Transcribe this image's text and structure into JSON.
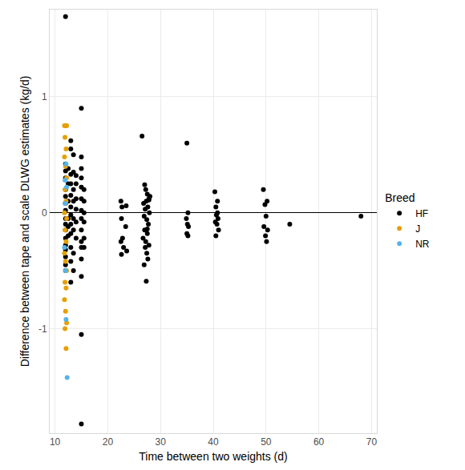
{
  "chart_data": {
    "type": "scatter",
    "x_label": "Time between two weights (d)",
    "y_label": "Difference between tape and scale DLWG estimates (kg/d)",
    "legend_title": "Breed",
    "legend": "right",
    "grid": true,
    "xlim": [
      9,
      71
    ],
    "xticks": [
      10,
      20,
      30,
      40,
      50,
      60,
      70
    ],
    "ylim": [
      -1.9,
      1.75
    ],
    "yticks": [
      -1,
      0,
      1
    ],
    "series": [
      {
        "name": "HF",
        "color": "#000000",
        "marker": "circle",
        "x": [
          12,
          12,
          12,
          12,
          12,
          12,
          12,
          12,
          12,
          12,
          12,
          12,
          12,
          12,
          12,
          12,
          12,
          12.5,
          12.5,
          12.5,
          12.5,
          12.5,
          12.5,
          13,
          13,
          13,
          13,
          13,
          13,
          13,
          13,
          13,
          13,
          13,
          13,
          13.5,
          13.5,
          13.5,
          13.5,
          13.5,
          13.5,
          13.5,
          13.5,
          14,
          14,
          14,
          14,
          14,
          14,
          15,
          15,
          15,
          15,
          15,
          15,
          15,
          15,
          15,
          15,
          15,
          15,
          15,
          15,
          15,
          15.5,
          15.5,
          15.5,
          15.5,
          15.5,
          15.5,
          22.5,
          22.7,
          22.6,
          22.8,
          22.5,
          22.6,
          23,
          23.5,
          23.4,
          23.6,
          26.5,
          27,
          27.2,
          27.5,
          27.8,
          27.3,
          26.8,
          27.6,
          27.1,
          27.9,
          26.9,
          27.4,
          27.7,
          27,
          27.5,
          26.7,
          27.2,
          27.8,
          27.1,
          27.4,
          27.6,
          26.9,
          27.3,
          27.5,
          28,
          27.8,
          35,
          35.2,
          34.9,
          35.1,
          35.3,
          35,
          35.2,
          40.3,
          40.5,
          40.8,
          40.6,
          40.9,
          40.4,
          40.7,
          41,
          40.5,
          40.8,
          49.5,
          50.2,
          49.8,
          50,
          49.6,
          50.3,
          49.9,
          50.1,
          54.5,
          68
        ],
        "values": [
          1.69,
          0.42,
          0.36,
          0.3,
          0.2,
          0.14,
          0.08,
          0.02,
          -0.05,
          -0.1,
          -0.15,
          -0.22,
          -0.28,
          -0.32,
          -0.38,
          -0.45,
          -0.5,
          0.38,
          0.25,
          0.1,
          -0.05,
          -0.12,
          -0.2,
          0.62,
          0.55,
          0.33,
          0.25,
          0.15,
          0.05,
          -0.02,
          -0.1,
          -0.18,
          -0.3,
          -0.42,
          -0.6,
          0.5,
          0.35,
          0.2,
          0.1,
          -0.05,
          -0.15,
          -0.35,
          -0.5,
          0.32,
          0.25,
          0.12,
          0.03,
          -0.08,
          -0.22,
          0.9,
          0.48,
          0.38,
          0.3,
          0.22,
          0.12,
          0.02,
          -0.05,
          -0.15,
          -0.25,
          -0.3,
          -0.4,
          -0.55,
          -1.05,
          -1.82,
          0.2,
          0.1,
          0.0,
          -0.08,
          -0.22,
          -0.3,
          0.1,
          0.05,
          -0.05,
          -0.22,
          -0.25,
          -0.36,
          -0.3,
          0.06,
          -0.12,
          -0.33,
          0.66,
          0.24,
          0.2,
          0.16,
          0.12,
          0.1,
          0.08,
          0.05,
          0.03,
          0.0,
          -0.03,
          -0.06,
          -0.1,
          -0.15,
          -0.18,
          -0.22,
          -0.25,
          -0.28,
          -0.3,
          -0.35,
          -0.4,
          -0.45,
          -0.59,
          -0.14,
          0.14,
          0.11,
          0.6,
          0.0,
          -0.05,
          -0.1,
          -0.12,
          -0.18,
          -0.2,
          0.18,
          0.05,
          0.0,
          -0.02,
          -0.05,
          -0.08,
          -0.1,
          -0.15,
          -0.2,
          0.1,
          0.2,
          0.1,
          0.07,
          -0.03,
          -0.12,
          -0.15,
          -0.2,
          -0.25,
          -0.1,
          -0.03
        ]
      },
      {
        "name": "J",
        "color": "#E69F00",
        "marker": "circle",
        "x": [
          11.8,
          12,
          12.2,
          11.9,
          12.1,
          11.8,
          12,
          12.2,
          11.9,
          12.1,
          12,
          11.8,
          12.2,
          11.9,
          12.1,
          11.8,
          12,
          12.2,
          11.9,
          12.1,
          11.8,
          12,
          12.2,
          11.9,
          12.1
        ],
        "values": [
          0.75,
          0.75,
          0.75,
          0.65,
          0.55,
          0.48,
          0.4,
          0.3,
          0.2,
          0.1,
          0.08,
          0.0,
          -0.05,
          -0.15,
          -0.25,
          -0.35,
          -0.42,
          -0.5,
          -0.6,
          -0.65,
          -0.75,
          -0.85,
          -0.95,
          -1.0,
          -1.17
        ]
      },
      {
        "name": "NR",
        "color": "#56B4E9",
        "marker": "circle",
        "x": [
          12.1,
          11.9,
          12.2,
          11.8,
          12,
          12.1,
          12.3,
          11.9
        ],
        "values": [
          0.42,
          0.28,
          0.22,
          -0.3,
          -0.5,
          -0.92,
          -1.42,
          0.08
        ]
      }
    ]
  }
}
